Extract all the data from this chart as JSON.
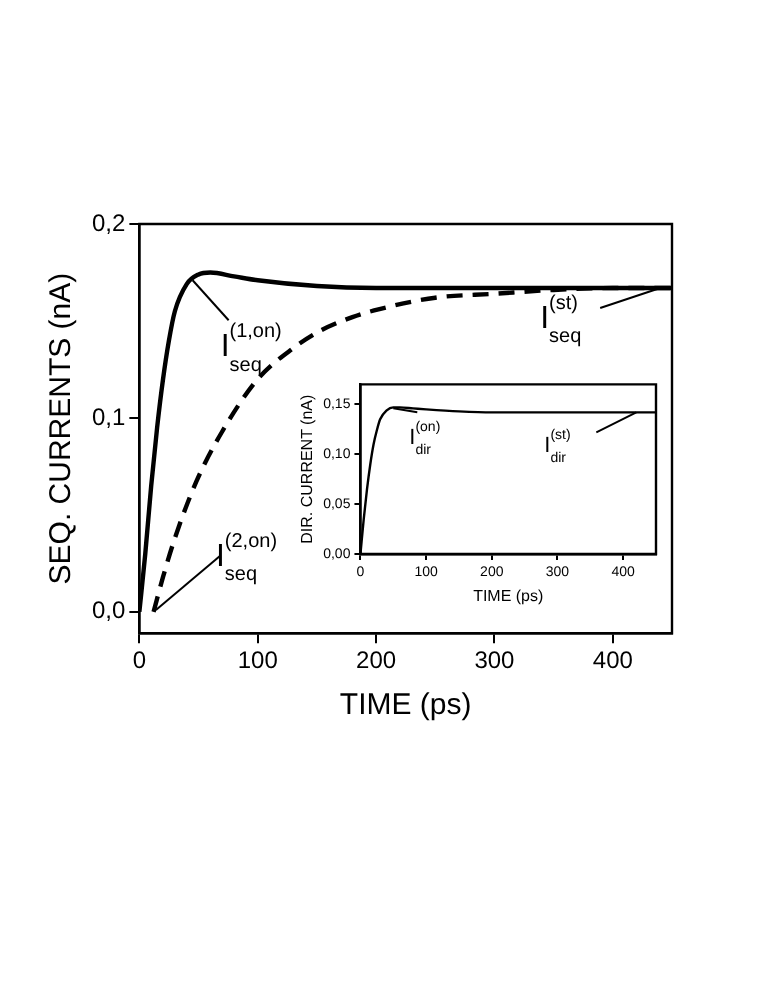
{
  "chart_data": [
    {
      "type": "line",
      "xlabel": "TIME (ps)",
      "ylabel": "SEQ. CURRENTS (nA)",
      "xlim": [
        0,
        450
      ],
      "xticks": [
        0,
        100,
        200,
        300,
        400
      ],
      "ylim": [
        -0.011,
        0.2
      ],
      "yticks": [
        {
          "value": 0,
          "label": "0,0"
        },
        {
          "value": 0.1,
          "label": "0,1"
        },
        {
          "value": 0.2,
          "label": "0,2"
        }
      ],
      "grid": false,
      "legend": false,
      "marker": "none",
      "series": [
        {
          "color": "#000000",
          "line_style": "solid",
          "x": [
            0,
            5,
            10,
            15,
            20,
            25,
            30,
            40,
            50,
            60,
            80,
            100,
            150,
            200,
            300,
            450
          ],
          "values": [
            0,
            0.03,
            0.065,
            0.095,
            0.12,
            0.14,
            0.155,
            0.169,
            0.174,
            0.175,
            0.173,
            0.171,
            0.168,
            0.167,
            0.167,
            0.167
          ]
        },
        {
          "color": "#000000",
          "line_style": "dashed",
          "x": [
            12,
            20,
            30,
            48,
            70,
            100,
            130,
            153,
            180,
            202,
            250,
            300,
            350,
            400,
            450
          ],
          "values": [
            0,
            0.018,
            0.038,
            0.067,
            0.093,
            0.12,
            0.136,
            0.145,
            0.152,
            0.156,
            0.162,
            0.164,
            0.166,
            0.167,
            0.167
          ]
        }
      ],
      "annotations": [
        {
          "text": "I$^{(1,on)}$$_{seq}$",
          "x": 45,
          "y": 0.171
        },
        {
          "text": "I$^{(2,on)}$$_{seq}$",
          "x": 14,
          "y": 0.001
        },
        {
          "text": "I$^{(st)}$$_{seq}$",
          "x": 440,
          "y": 0.167
        }
      ]
    },
    {
      "type": "line",
      "xlabel": "TIME (ps)",
      "ylabel": "DIR. CURRENT (nA)",
      "xlim": [
        0,
        450
      ],
      "xticks": [
        0,
        100,
        200,
        300,
        400
      ],
      "ylim": [
        0,
        0.17
      ],
      "yticks": [
        {
          "value": 0,
          "label": "0,00"
        },
        {
          "value": 0.05,
          "label": "0,05"
        },
        {
          "value": 0.1,
          "label": "0,10"
        },
        {
          "value": 0.15,
          "label": "0,15"
        }
      ],
      "grid": false,
      "legend": false,
      "marker": "none",
      "series": [
        {
          "color": "#000000",
          "line_style": "solid",
          "x": [
            0,
            5,
            10,
            15,
            20,
            25,
            30,
            40,
            50,
            60,
            80,
            100,
            150,
            200,
            250,
            300,
            450
          ],
          "values": [
            0,
            0.035,
            0.065,
            0.09,
            0.11,
            0.124,
            0.135,
            0.144,
            0.147,
            0.147,
            0.146,
            0.145,
            0.143,
            0.142,
            0.142,
            0.142,
            0.142
          ]
        }
      ],
      "annotations": [
        {
          "text": "I$^{(on)}$$_{dir}$",
          "x": 50,
          "y": 0.146
        },
        {
          "text": "I$^{(st)}$$_{dir}$",
          "x": 420,
          "y": 0.142
        }
      ]
    }
  ]
}
